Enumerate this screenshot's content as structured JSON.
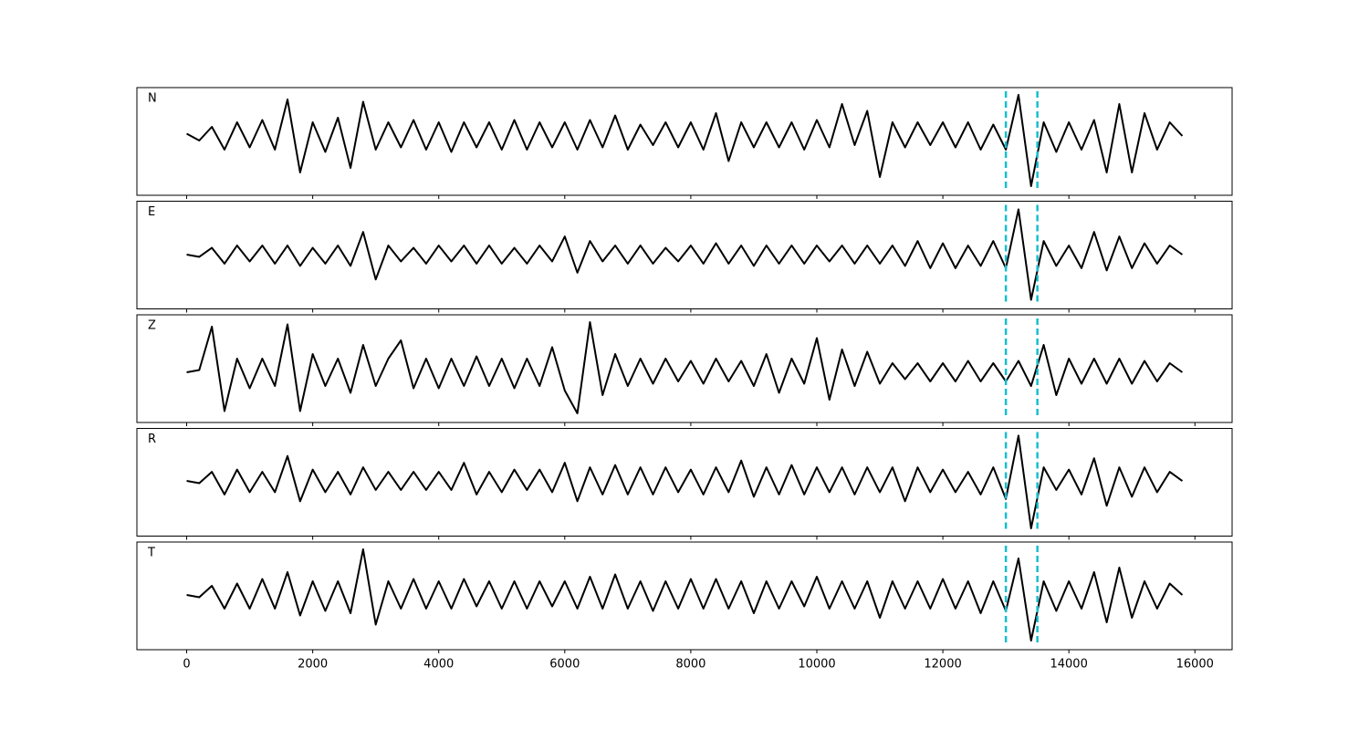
{
  "chart_data": {
    "type": "line",
    "x": [
      0,
      200,
      400,
      600,
      800,
      1000,
      1200,
      1400,
      1600,
      1800,
      2000,
      2200,
      2400,
      2600,
      2800,
      3000,
      3200,
      3400,
      3600,
      3800,
      4000,
      4200,
      4400,
      4600,
      4800,
      5000,
      5200,
      5400,
      5600,
      5800,
      6000,
      6200,
      6400,
      6600,
      6800,
      7000,
      7200,
      7400,
      7600,
      7800,
      8000,
      8200,
      8400,
      8600,
      8800,
      9000,
      9200,
      9400,
      9600,
      9800,
      10000,
      10200,
      10400,
      10600,
      10800,
      11000,
      11200,
      11400,
      11600,
      11800,
      12000,
      12200,
      12400,
      12600,
      12800,
      13000,
      13200,
      13400,
      13600,
      13800,
      14000,
      14200,
      14400,
      14600,
      14800,
      15000,
      15200,
      15400,
      15600,
      15800
    ],
    "xlim": [
      -790,
      16590
    ],
    "xticks": [
      0,
      2000,
      4000,
      6000,
      8000,
      10000,
      12000,
      14000,
      16000
    ],
    "vlines": {
      "x": [
        13000,
        13500
      ],
      "color": "#17becf"
    },
    "series": [
      {
        "name": "N",
        "color": "#000000",
        "ylim": [
          -1.3,
          1.06
        ],
        "values": [
          0.05,
          -0.1,
          0.2,
          -0.3,
          0.3,
          -0.25,
          0.35,
          -0.3,
          0.8,
          -0.8,
          0.3,
          -0.35,
          0.4,
          -0.7,
          0.75,
          -0.3,
          0.3,
          -0.25,
          0.35,
          -0.3,
          0.3,
          -0.35,
          0.3,
          -0.25,
          0.3,
          -0.3,
          0.35,
          -0.3,
          0.3,
          -0.25,
          0.3,
          -0.3,
          0.35,
          -0.25,
          0.45,
          -0.3,
          0.25,
          -0.2,
          0.3,
          -0.25,
          0.3,
          -0.3,
          0.5,
          -0.55,
          0.3,
          -0.25,
          0.3,
          -0.25,
          0.3,
          -0.3,
          0.35,
          -0.25,
          0.7,
          -0.2,
          0.55,
          -0.9,
          0.3,
          -0.25,
          0.3,
          -0.2,
          0.3,
          -0.25,
          0.3,
          -0.3,
          0.25,
          -0.3,
          0.9,
          -1.1,
          0.3,
          -0.35,
          0.3,
          -0.3,
          0.35,
          -0.8,
          0.7,
          -0.8,
          0.5,
          -0.3,
          0.3,
          0.0
        ]
      },
      {
        "name": "E",
        "color": "#000000",
        "ylim": [
          -1.2,
          1.18
        ],
        "values": [
          0.0,
          -0.05,
          0.15,
          -0.2,
          0.2,
          -0.15,
          0.2,
          -0.2,
          0.2,
          -0.25,
          0.15,
          -0.2,
          0.2,
          -0.25,
          0.5,
          -0.55,
          0.2,
          -0.15,
          0.15,
          -0.2,
          0.2,
          -0.15,
          0.2,
          -0.2,
          0.2,
          -0.2,
          0.15,
          -0.2,
          0.2,
          -0.15,
          0.4,
          -0.4,
          0.3,
          -0.15,
          0.2,
          -0.2,
          0.2,
          -0.2,
          0.15,
          -0.15,
          0.2,
          -0.2,
          0.25,
          -0.2,
          0.2,
          -0.25,
          0.2,
          -0.2,
          0.2,
          -0.2,
          0.2,
          -0.15,
          0.2,
          -0.2,
          0.2,
          -0.2,
          0.2,
          -0.25,
          0.3,
          -0.3,
          0.25,
          -0.3,
          0.2,
          -0.25,
          0.3,
          -0.3,
          1.0,
          -1.0,
          0.3,
          -0.25,
          0.2,
          -0.3,
          0.5,
          -0.35,
          0.4,
          -0.3,
          0.25,
          -0.2,
          0.2,
          0.0
        ]
      },
      {
        "name": "Z",
        "color": "#000000",
        "ylim": [
          -1.1,
          1.26
        ],
        "values": [
          0.0,
          0.05,
          1.0,
          -0.85,
          0.3,
          -0.35,
          0.3,
          -0.3,
          1.05,
          -0.85,
          0.4,
          -0.3,
          0.3,
          -0.45,
          0.6,
          -0.3,
          0.3,
          0.7,
          -0.35,
          0.3,
          -0.35,
          0.3,
          -0.3,
          0.35,
          -0.3,
          0.3,
          -0.35,
          0.3,
          -0.3,
          0.55,
          -0.4,
          -0.9,
          1.1,
          -0.5,
          0.4,
          -0.3,
          0.3,
          -0.25,
          0.3,
          -0.2,
          0.25,
          -0.25,
          0.3,
          -0.2,
          0.25,
          -0.3,
          0.4,
          -0.45,
          0.3,
          -0.25,
          0.75,
          -0.6,
          0.5,
          -0.3,
          0.45,
          -0.25,
          0.2,
          -0.15,
          0.2,
          -0.2,
          0.2,
          -0.2,
          0.25,
          -0.2,
          0.2,
          -0.2,
          0.25,
          -0.3,
          0.6,
          -0.5,
          0.3,
          -0.25,
          0.3,
          -0.25,
          0.3,
          -0.25,
          0.25,
          -0.2,
          0.2,
          0.0
        ]
      },
      {
        "name": "R",
        "color": "#000000",
        "ylim": [
          -1.22,
          1.16
        ],
        "values": [
          0.0,
          -0.05,
          0.2,
          -0.3,
          0.25,
          -0.25,
          0.2,
          -0.25,
          0.55,
          -0.45,
          0.25,
          -0.25,
          0.2,
          -0.3,
          0.3,
          -0.2,
          0.2,
          -0.2,
          0.2,
          -0.2,
          0.2,
          -0.2,
          0.4,
          -0.3,
          0.2,
          -0.25,
          0.25,
          -0.2,
          0.25,
          -0.25,
          0.4,
          -0.45,
          0.3,
          -0.3,
          0.35,
          -0.3,
          0.3,
          -0.3,
          0.3,
          -0.25,
          0.25,
          -0.3,
          0.3,
          -0.25,
          0.45,
          -0.35,
          0.3,
          -0.3,
          0.35,
          -0.3,
          0.3,
          -0.25,
          0.3,
          -0.3,
          0.3,
          -0.25,
          0.3,
          -0.45,
          0.3,
          -0.25,
          0.25,
          -0.25,
          0.2,
          -0.3,
          0.3,
          -0.4,
          1.0,
          -1.05,
          0.3,
          -0.2,
          0.25,
          -0.3,
          0.5,
          -0.55,
          0.3,
          -0.35,
          0.3,
          -0.25,
          0.2,
          0.0
        ]
      },
      {
        "name": "T",
        "color": "#000000",
        "ylim": [
          -1.2,
          1.16
        ],
        "values": [
          0.0,
          -0.05,
          0.2,
          -0.3,
          0.25,
          -0.3,
          0.35,
          -0.3,
          0.5,
          -0.45,
          0.3,
          -0.35,
          0.3,
          -0.4,
          1.0,
          -0.65,
          0.3,
          -0.3,
          0.35,
          -0.3,
          0.3,
          -0.3,
          0.35,
          -0.25,
          0.3,
          -0.3,
          0.3,
          -0.3,
          0.3,
          -0.25,
          0.3,
          -0.3,
          0.4,
          -0.3,
          0.45,
          -0.3,
          0.3,
          -0.35,
          0.3,
          -0.3,
          0.35,
          -0.3,
          0.35,
          -0.3,
          0.3,
          -0.4,
          0.3,
          -0.3,
          0.3,
          -0.25,
          0.4,
          -0.3,
          0.3,
          -0.3,
          0.3,
          -0.5,
          0.3,
          -0.3,
          0.3,
          -0.3,
          0.35,
          -0.3,
          0.3,
          -0.4,
          0.3,
          -0.35,
          0.8,
          -1.0,
          0.3,
          -0.35,
          0.3,
          -0.3,
          0.5,
          -0.6,
          0.6,
          -0.5,
          0.3,
          -0.3,
          0.25,
          0.0
        ]
      }
    ]
  }
}
